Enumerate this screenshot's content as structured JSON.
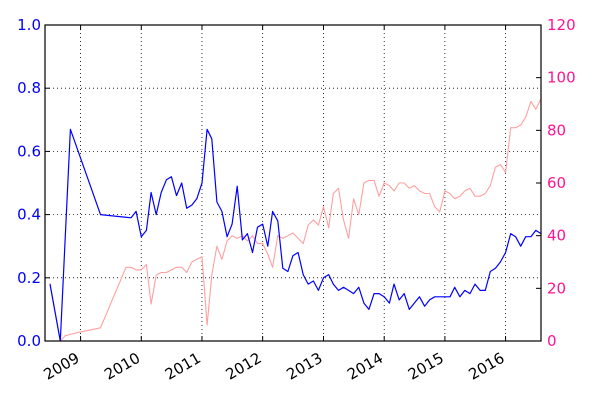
{
  "chart_data": {
    "type": "line",
    "title": "",
    "xlabel": "",
    "ylabel": "",
    "grid": true,
    "x_axis": {
      "type": "date",
      "range": [
        "2008-06-01",
        "2016-08-01"
      ],
      "tick_labels": [
        "2009",
        "2010",
        "2011",
        "2012",
        "2013",
        "2014",
        "2015",
        "2016"
      ],
      "tick_dates": [
        "2009-01-01",
        "2010-01-01",
        "2011-01-01",
        "2012-01-01",
        "2013-01-01",
        "2014-01-01",
        "2015-01-01",
        "2016-01-01"
      ]
    },
    "y_left": {
      "range": [
        0.0,
        1.0
      ],
      "ticks": [
        "0.0",
        "0.2",
        "0.4",
        "0.6",
        "0.8",
        "1.0"
      ],
      "color": "#0000ff"
    },
    "y_right": {
      "range": [
        0,
        120
      ],
      "ticks": [
        "0",
        "20",
        "40",
        "60",
        "80",
        "100",
        "120"
      ],
      "color": "#ff1493"
    },
    "series": [
      {
        "axis": "left",
        "color": "#0000ff",
        "points": [
          [
            "2008-07-01",
            0.18
          ],
          [
            "2008-09-01",
            0.0
          ],
          [
            "2008-11-01",
            0.67
          ],
          [
            "2009-05-01",
            0.4
          ],
          [
            "2009-11-01",
            0.39
          ],
          [
            "2009-12-01",
            0.41
          ],
          [
            "2010-01-01",
            0.33
          ],
          [
            "2010-02-01",
            0.35
          ],
          [
            "2010-03-01",
            0.47
          ],
          [
            "2010-04-01",
            0.4
          ],
          [
            "2010-05-01",
            0.47
          ],
          [
            "2010-06-01",
            0.51
          ],
          [
            "2010-07-01",
            0.52
          ],
          [
            "2010-08-01",
            0.46
          ],
          [
            "2010-09-01",
            0.5
          ],
          [
            "2010-10-01",
            0.42
          ],
          [
            "2010-11-01",
            0.43
          ],
          [
            "2010-12-01",
            0.45
          ],
          [
            "2011-01-01",
            0.5
          ],
          [
            "2011-02-01",
            0.67
          ],
          [
            "2011-03-01",
            0.64
          ],
          [
            "2011-04-01",
            0.44
          ],
          [
            "2011-05-01",
            0.41
          ],
          [
            "2011-06-01",
            0.33
          ],
          [
            "2011-07-01",
            0.37
          ],
          [
            "2011-08-01",
            0.49
          ],
          [
            "2011-09-01",
            0.32
          ],
          [
            "2011-10-01",
            0.34
          ],
          [
            "2011-11-01",
            0.28
          ],
          [
            "2011-12-01",
            0.36
          ],
          [
            "2012-01-01",
            0.37
          ],
          [
            "2012-02-01",
            0.3
          ],
          [
            "2012-03-01",
            0.41
          ],
          [
            "2012-04-01",
            0.38
          ],
          [
            "2012-05-01",
            0.23
          ],
          [
            "2012-06-01",
            0.22
          ],
          [
            "2012-07-01",
            0.27
          ],
          [
            "2012-08-01",
            0.28
          ],
          [
            "2012-09-01",
            0.21
          ],
          [
            "2012-10-01",
            0.18
          ],
          [
            "2012-11-01",
            0.19
          ],
          [
            "2012-12-01",
            0.16
          ],
          [
            "2013-01-01",
            0.2
          ],
          [
            "2013-02-01",
            0.21
          ],
          [
            "2013-03-01",
            0.18
          ],
          [
            "2013-04-01",
            0.16
          ],
          [
            "2013-05-01",
            0.17
          ],
          [
            "2013-06-01",
            0.16
          ],
          [
            "2013-07-01",
            0.15
          ],
          [
            "2013-08-01",
            0.17
          ],
          [
            "2013-09-01",
            0.12
          ],
          [
            "2013-10-01",
            0.1
          ],
          [
            "2013-11-01",
            0.15
          ],
          [
            "2013-12-01",
            0.15
          ],
          [
            "2014-01-01",
            0.14
          ],
          [
            "2014-02-01",
            0.12
          ],
          [
            "2014-03-01",
            0.18
          ],
          [
            "2014-04-01",
            0.13
          ],
          [
            "2014-05-01",
            0.15
          ],
          [
            "2014-06-01",
            0.1
          ],
          [
            "2014-07-01",
            0.12
          ],
          [
            "2014-08-01",
            0.14
          ],
          [
            "2014-09-01",
            0.11
          ],
          [
            "2014-10-01",
            0.13
          ],
          [
            "2014-11-01",
            0.14
          ],
          [
            "2014-12-01",
            0.14
          ],
          [
            "2015-01-01",
            0.14
          ],
          [
            "2015-02-01",
            0.14
          ],
          [
            "2015-03-01",
            0.17
          ],
          [
            "2015-04-01",
            0.14
          ],
          [
            "2015-05-01",
            0.16
          ],
          [
            "2015-06-01",
            0.15
          ],
          [
            "2015-07-01",
            0.18
          ],
          [
            "2015-08-01",
            0.16
          ],
          [
            "2015-09-01",
            0.16
          ],
          [
            "2015-10-01",
            0.22
          ],
          [
            "2015-11-01",
            0.23
          ],
          [
            "2015-12-01",
            0.25
          ],
          [
            "2016-01-01",
            0.28
          ],
          [
            "2016-02-01",
            0.34
          ],
          [
            "2016-03-01",
            0.33
          ],
          [
            "2016-04-01",
            0.3
          ],
          [
            "2016-05-01",
            0.33
          ],
          [
            "2016-06-01",
            0.33
          ],
          [
            "2016-07-01",
            0.35
          ],
          [
            "2016-08-01",
            0.34
          ]
        ]
      },
      {
        "axis": "right",
        "color": "#ffa0a0",
        "points": [
          [
            "2008-07-01",
            22
          ],
          [
            "2008-09-01",
            0
          ],
          [
            "2008-10-01",
            2
          ],
          [
            "2008-12-01",
            3
          ],
          [
            "2009-05-01",
            5
          ],
          [
            "2009-10-01",
            28
          ],
          [
            "2009-11-01",
            28
          ],
          [
            "2009-12-01",
            27
          ],
          [
            "2010-01-01",
            27
          ],
          [
            "2010-02-01",
            29
          ],
          [
            "2010-03-01",
            14
          ],
          [
            "2010-04-01",
            25
          ],
          [
            "2010-05-01",
            26
          ],
          [
            "2010-06-01",
            26
          ],
          [
            "2010-07-01",
            27
          ],
          [
            "2010-08-01",
            28
          ],
          [
            "2010-09-01",
            28
          ],
          [
            "2010-10-01",
            26
          ],
          [
            "2010-11-01",
            30
          ],
          [
            "2010-12-01",
            31
          ],
          [
            "2011-01-01",
            32
          ],
          [
            "2011-02-01",
            6
          ],
          [
            "2011-03-01",
            25
          ],
          [
            "2011-04-01",
            36
          ],
          [
            "2011-05-01",
            31
          ],
          [
            "2011-06-01",
            38
          ],
          [
            "2011-07-01",
            40
          ],
          [
            "2011-08-01",
            39
          ],
          [
            "2011-09-01",
            40
          ],
          [
            "2011-10-01",
            38
          ],
          [
            "2011-11-01",
            40
          ],
          [
            "2011-12-01",
            37
          ],
          [
            "2012-01-01",
            37
          ],
          [
            "2012-02-01",
            33
          ],
          [
            "2012-03-01",
            28
          ],
          [
            "2012-04-01",
            40
          ],
          [
            "2012-05-01",
            39
          ],
          [
            "2012-06-01",
            40
          ],
          [
            "2012-07-01",
            41
          ],
          [
            "2012-08-01",
            39
          ],
          [
            "2012-09-01",
            37
          ],
          [
            "2012-10-01",
            44
          ],
          [
            "2012-11-01",
            46
          ],
          [
            "2012-12-01",
            44
          ],
          [
            "2013-01-01",
            51
          ],
          [
            "2013-02-01",
            43
          ],
          [
            "2013-03-01",
            56
          ],
          [
            "2013-04-01",
            58
          ],
          [
            "2013-05-01",
            46
          ],
          [
            "2013-06-01",
            39
          ],
          [
            "2013-07-01",
            54
          ],
          [
            "2013-08-01",
            48
          ],
          [
            "2013-09-01",
            60
          ],
          [
            "2013-10-01",
            61
          ],
          [
            "2013-11-01",
            61
          ],
          [
            "2013-12-01",
            55
          ],
          [
            "2014-01-01",
            60
          ],
          [
            "2014-02-01",
            59
          ],
          [
            "2014-03-01",
            57
          ],
          [
            "2014-04-01",
            60
          ],
          [
            "2014-05-01",
            60
          ],
          [
            "2014-06-01",
            58
          ],
          [
            "2014-07-01",
            59
          ],
          [
            "2014-08-01",
            57
          ],
          [
            "2014-09-01",
            56
          ],
          [
            "2014-10-01",
            56
          ],
          [
            "2014-11-01",
            51
          ],
          [
            "2014-12-01",
            49
          ],
          [
            "2015-01-01",
            57
          ],
          [
            "2015-02-01",
            56
          ],
          [
            "2015-03-01",
            54
          ],
          [
            "2015-04-01",
            55
          ],
          [
            "2015-05-01",
            57
          ],
          [
            "2015-06-01",
            58
          ],
          [
            "2015-07-01",
            55
          ],
          [
            "2015-08-01",
            55
          ],
          [
            "2015-09-01",
            56
          ],
          [
            "2015-10-01",
            59
          ],
          [
            "2015-11-01",
            66
          ],
          [
            "2015-12-01",
            67
          ],
          [
            "2016-01-01",
            64
          ],
          [
            "2016-02-01",
            81
          ],
          [
            "2016-03-01",
            81
          ],
          [
            "2016-04-01",
            82
          ],
          [
            "2016-05-01",
            85
          ],
          [
            "2016-06-01",
            91
          ],
          [
            "2016-07-01",
            88
          ],
          [
            "2016-08-01",
            92
          ]
        ]
      }
    ]
  }
}
